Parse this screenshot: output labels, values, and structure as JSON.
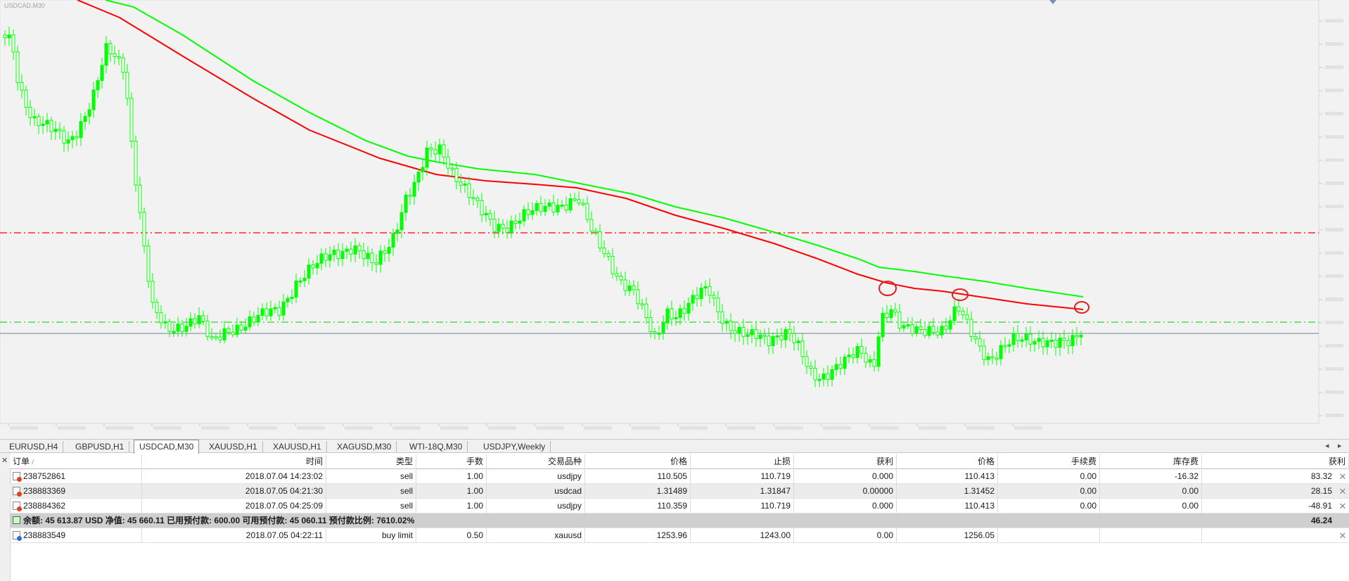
{
  "chart": {
    "symbol_title": "USDCAD,M30",
    "colors": {
      "background": "#f2f2f2",
      "candle": "#00ff00",
      "ma_fast": "#00ff00",
      "ma_slow": "#ff0000",
      "level_red": "#ff0000",
      "level_green": "#00cc00",
      "bid_line": "#708090"
    }
  },
  "tabs": [
    {
      "label": "EURUSD,H4",
      "active": false
    },
    {
      "label": "GBPUSD,H1",
      "active": false
    },
    {
      "label": "USDCAD,M30",
      "active": true
    },
    {
      "label": "XAUUSD,H1",
      "active": false
    },
    {
      "label": "XAUUSD,H1",
      "active": false
    },
    {
      "label": "XAGUSD,M30",
      "active": false
    },
    {
      "label": "WTI-18Q,M30",
      "active": false
    },
    {
      "label": "USDJPY,Weekly",
      "active": false
    }
  ],
  "terminal": {
    "headers": {
      "order": "订单",
      "sort_mark": "/",
      "time": "时间",
      "type": "类型",
      "lots": "手数",
      "symbol": "交易品种",
      "price": "价格",
      "sl": "止损",
      "tp": "获利",
      "cur_price": "价格",
      "commission": "手续费",
      "swap": "库存费",
      "profit": "获利"
    },
    "orders": [
      {
        "order": "238752861",
        "time": "2018.07.04 14:23:02",
        "type": "sell",
        "lots": "1.00",
        "symbol": "usdjpy",
        "price": "110.505",
        "sl": "110.719",
        "tp": "0.000",
        "cur_price": "110.413",
        "commission": "0.00",
        "swap": "-16.32",
        "profit": "83.32"
      },
      {
        "order": "238883369",
        "time": "2018.07.05 04:21:30",
        "type": "sell",
        "lots": "1.00",
        "symbol": "usdcad",
        "price": "1.31489",
        "sl": "1.31847",
        "tp": "0.00000",
        "cur_price": "1.31452",
        "commission": "0.00",
        "swap": "0.00",
        "profit": "28.15"
      },
      {
        "order": "238884362",
        "time": "2018.07.05 04:25:09",
        "type": "sell",
        "lots": "1.00",
        "symbol": "usdjpy",
        "price": "110.359",
        "sl": "110.719",
        "tp": "0.000",
        "cur_price": "110.413",
        "commission": "0.00",
        "swap": "0.00",
        "profit": "-48.91"
      }
    ],
    "summary": {
      "text": "余额: 45 613.87 USD  净值: 45 660.11  已用预付款: 600.00  可用预付款: 45 060.11  预付款比例: 7610.02%",
      "profit": "46.24"
    },
    "pending": [
      {
        "order": "238883549",
        "time": "2018.07.05 04:22:11",
        "type": "buy limit",
        "lots": "0.50",
        "symbol": "xauusd",
        "price": "1253.96",
        "sl": "1243.00",
        "tp": "0.00",
        "cur_price": "1256.05"
      }
    ]
  }
}
